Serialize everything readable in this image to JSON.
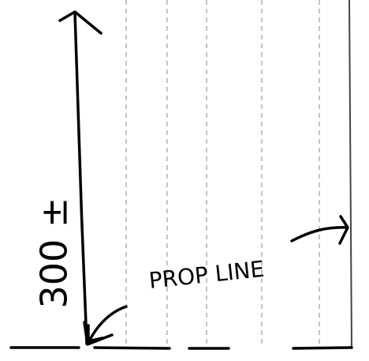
{
  "dimension_label": "300 ±",
  "line_label": "PROP LINE"
}
